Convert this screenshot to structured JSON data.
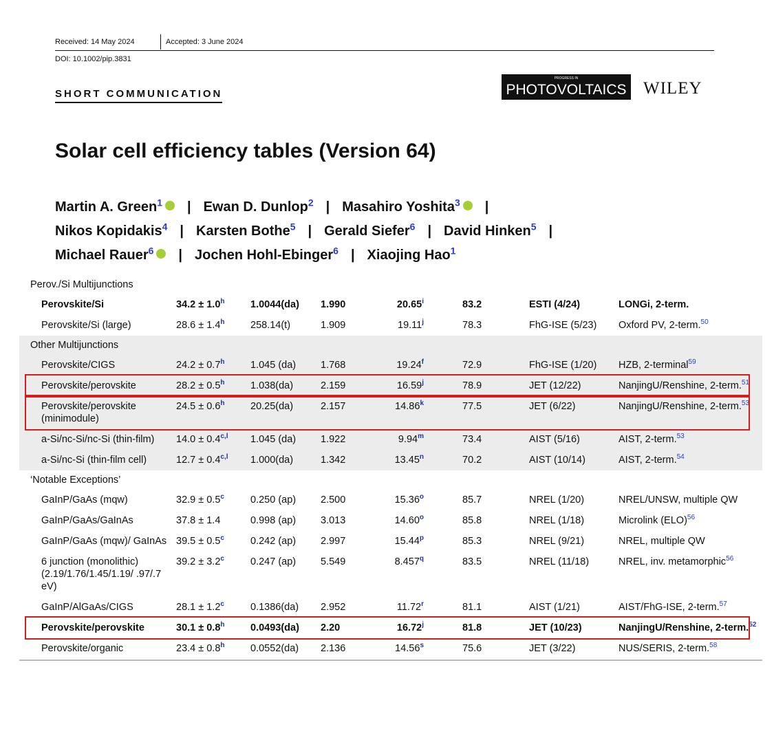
{
  "header": {
    "received": "Received: 14 May 2024",
    "accepted": "Accepted: 3 June 2024",
    "doi": "DOI: 10.1002/pip.3831",
    "section": "SHORT COMMUNICATION",
    "journal_small": "PROGRESS IN",
    "journal": "PHOTOVOLTAICS",
    "publisher": "WILEY"
  },
  "title": "Solar cell efficiency tables (Version 64)",
  "authors": {
    "separator": "|",
    "lines": [
      [
        {
          "name": "Martin A. Green",
          "affil": "1",
          "orcid": true
        },
        {
          "name": "Ewan D. Dunlop",
          "affil": "2"
        },
        {
          "name": "Masahiro Yoshita",
          "affil": "3",
          "orcid": true
        }
      ],
      [
        {
          "name": "Nikos Kopidakis",
          "affil": "4"
        },
        {
          "name": "Karsten Bothe",
          "affil": "5"
        },
        {
          "name": "Gerald Siefer",
          "affil": "6"
        },
        {
          "name": "David Hinken",
          "affil": "5"
        }
      ],
      [
        {
          "name": "Michael Rauer",
          "affil": "6",
          "orcid": true
        },
        {
          "name": "Jochen Hohl-Ebinger",
          "affil": "6"
        },
        {
          "name": "Xiaojing Hao",
          "affil": "1"
        }
      ]
    ]
  },
  "table": {
    "groups": [
      {
        "title": "Perov./Si Multijunctions",
        "rows": [
          {
            "device": "Perovskite/Si",
            "eff": "34.2 ± 1.0",
            "eff_note": "h",
            "area": "1.0044(da)",
            "voc": "1.990",
            "jsc": "20.65",
            "jsc_note": "i",
            "ff": "83.2",
            "center": "ESTI (4/24)",
            "desc": "LONGi, 2-term.",
            "bold": true
          },
          {
            "device": "Perovskite/Si (large)",
            "eff": "28.6 ± 1.4",
            "eff_note": "h",
            "area": "258.14(t)",
            "voc": "1.909",
            "jsc": "19.11",
            "jsc_note": "j",
            "ff": "78.3",
            "center": "FhG-ISE (5/23)",
            "desc": "Oxford PV, 2-term.",
            "desc_ref": "50"
          }
        ]
      },
      {
        "title": "Other Multijunctions",
        "shaded": true,
        "rows": [
          {
            "device": "Perovskite/CIGS",
            "eff": "24.2 ± 0.7",
            "eff_note": "h",
            "area": "1.045 (da)",
            "voc": "1.768",
            "jsc": "19.24",
            "jsc_note": "f",
            "ff": "72.9",
            "center": "FhG-ISE (1/20)",
            "desc": "HZB, 2-terminal",
            "desc_ref": "59"
          },
          {
            "device": "Perovskite/perovskite",
            "eff": "28.2 ± 0.5",
            "eff_note": "h",
            "area": "1.038(da)",
            "voc": "2.159",
            "jsc": "16.59",
            "jsc_note": "j",
            "ff": "78.9",
            "center": "JET (12/22)",
            "desc": "NanjingU/Renshine, 2-term.",
            "desc_ref": "51",
            "highlighted": true
          },
          {
            "device": "Perovskite/perovskite (minimodule)",
            "eff": "24.5 ± 0.6",
            "eff_note": "h",
            "area": "20.25(da)",
            "voc": "2.157",
            "jsc": "14.86",
            "jsc_note": "k",
            "ff": "77.5",
            "center": "JET (6/22)",
            "desc": "NanjingU/Renshine, 2-term.",
            "desc_ref": "53",
            "highlighted": true
          },
          {
            "device": "a-Si/nc-Si/nc-Si (thin-film)",
            "eff": "14.0 ± 0.4",
            "eff_note": "c,l",
            "area": "1.045 (da)",
            "voc": "1.922",
            "jsc": "9.94",
            "jsc_note": "m",
            "ff": "73.4",
            "center": "AIST (5/16)",
            "desc": "AIST, 2-term.",
            "desc_ref": "53"
          },
          {
            "device": "a-Si/nc-Si (thin-film cell)",
            "eff": "12.7 ± 0.4",
            "eff_note": "c,l",
            "area": "1.000(da)",
            "voc": "1.342",
            "jsc": "13.45",
            "jsc_note": "n",
            "ff": "70.2",
            "center": "AIST (10/14)",
            "desc": "AIST, 2-term.",
            "desc_ref": "54"
          }
        ]
      },
      {
        "title": "‘Notable Exceptions’",
        "rows": [
          {
            "device": "GaInP/GaAs (mqw)",
            "eff": "32.9 ± 0.5",
            "eff_note": "c",
            "area": "0.250 (ap)",
            "voc": "2.500",
            "jsc": "15.36",
            "jsc_note": "o",
            "ff": "85.7",
            "center": "NREL (1/20)",
            "desc": "NREL/UNSW, multiple QW"
          },
          {
            "device": "GaInP/GaAs/GaInAs",
            "eff": "37.8 ± 1.4",
            "area": "0.998 (ap)",
            "voc": "3.013",
            "jsc": "14.60",
            "jsc_note": "o",
            "ff": "85.8",
            "center": "NREL (1/18)",
            "desc": "Microlink (ELO)",
            "desc_ref": "56"
          },
          {
            "device": "GaInP/GaAs (mqw)/ GaInAs",
            "eff": "39.5 ± 0.5",
            "eff_note": "c",
            "area": "0.242 (ap)",
            "voc": "2.997",
            "jsc": "15.44",
            "jsc_note": "p",
            "ff": "85.3",
            "center": "NREL (9/21)",
            "desc": "NREL, multiple QW"
          },
          {
            "device": "6 junction (monolithic) (2.19/1.76/1.45/1.19/ .97/.7 eV)",
            "eff": "39.2 ± 3.2",
            "eff_note": "c",
            "area": "0.247 (ap)",
            "voc": "5.549",
            "jsc": "8.457",
            "jsc_note": "q",
            "ff": "83.5",
            "center": "NREL (11/18)",
            "desc": "NREL, inv. metamorphic",
            "desc_ref": "56"
          },
          {
            "device": "GaInP/AlGaAs/CIGS",
            "eff": "28.1 ± 1.2",
            "eff_note": "c",
            "area": "0.1386(da)",
            "voc": "2.952",
            "jsc": "11.72",
            "jsc_note": "r",
            "ff": "81.1",
            "center": "AIST (1/21)",
            "desc": "AIST/FhG-ISE, 2-term.",
            "desc_ref": "57"
          },
          {
            "device": "Perovskite/perovskite",
            "eff": "30.1 ± 0.8",
            "eff_note": "h",
            "area": "0.0493(da)",
            "voc": "2.20",
            "jsc": "16.72",
            "jsc_note": "j",
            "ff": "81.8",
            "center": "JET (10/23)",
            "desc": "NanjingU/Renshine, 2-term.",
            "desc_ref": "52",
            "bold": true,
            "highlighted": true
          },
          {
            "device": "Perovskite/organic",
            "eff": "23.4 ± 0.8",
            "eff_note": "h",
            "area": "0.0552(da)",
            "voc": "2.136",
            "jsc": "14.56",
            "jsc_note": "s",
            "ff": "75.6",
            "center": "JET (3/22)",
            "desc": "NUS/SERIS, 2-term.",
            "desc_ref": "58"
          }
        ]
      }
    ]
  }
}
